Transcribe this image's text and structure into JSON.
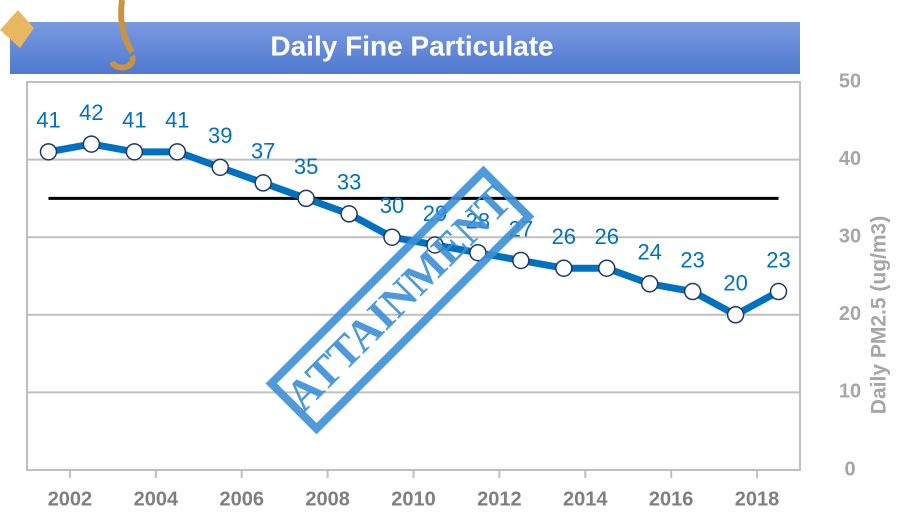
{
  "chart_data": {
    "type": "line",
    "title": "Daily Fine Particulate",
    "y_axis_label": "Daily PM2.5 (ug/m3)",
    "annotation": "ATTAINMENT",
    "x": [
      2001.5,
      2002.5,
      2003.5,
      2004.5,
      2005.5,
      2006.5,
      2007.5,
      2008.5,
      2009.5,
      2010.5,
      2011.5,
      2012.5,
      2013.5,
      2014.5,
      2015.5,
      2016.5,
      2017.5,
      2018.5
    ],
    "series": [
      {
        "name": "Daily PM2.5",
        "color": "#0070c0",
        "values": [
          41,
          42,
          41,
          41,
          39,
          37,
          35,
          33,
          30,
          29,
          28,
          27,
          26,
          26,
          24,
          23,
          20,
          23
        ]
      }
    ],
    "threshold": 35,
    "xlim": [
      2001,
      2019
    ],
    "xticks": [
      2002,
      2004,
      2006,
      2008,
      2010,
      2012,
      2014,
      2016,
      2018
    ],
    "ylim": [
      0,
      50
    ],
    "yticks": [
      0,
      10,
      20,
      30,
      40,
      50
    ],
    "grid": true
  }
}
